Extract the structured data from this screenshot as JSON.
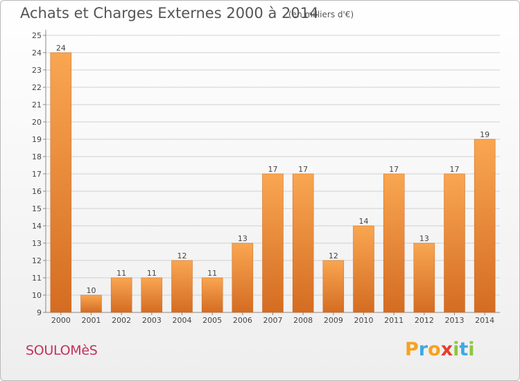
{
  "header": {
    "title": "Achats et Charges Externes 2000 à 2014",
    "subtitle": "(en milliers d'€)"
  },
  "footer": {
    "commune": "SOULOMèS",
    "brand": "Proxiti",
    "brand_colors": [
      "#f6a21d",
      "#3fa9e0",
      "#f6a21d",
      "#e63d2e",
      "#8dc63f",
      "#3fa9e0",
      "#8dc63f"
    ]
  },
  "colors": {
    "bar_light": "#f7a24a",
    "bar_dark": "#d9742a",
    "grid": "#d0d0d0",
    "text": "#555555"
  },
  "chart_data": {
    "type": "bar",
    "categories": [
      "2000",
      "2001",
      "2002",
      "2003",
      "2004",
      "2005",
      "2006",
      "2007",
      "2008",
      "2009",
      "2010",
      "2011",
      "2012",
      "2013",
      "2014"
    ],
    "values": [
      24,
      10,
      11,
      11,
      12,
      11,
      13,
      17,
      17,
      12,
      14,
      17,
      13,
      17,
      19
    ],
    "ylim": [
      9,
      25
    ],
    "yticks": [
      9,
      10,
      11,
      12,
      13,
      14,
      15,
      16,
      17,
      18,
      19,
      20,
      21,
      22,
      23,
      24,
      25
    ],
    "grid": true,
    "legend": "none"
  }
}
